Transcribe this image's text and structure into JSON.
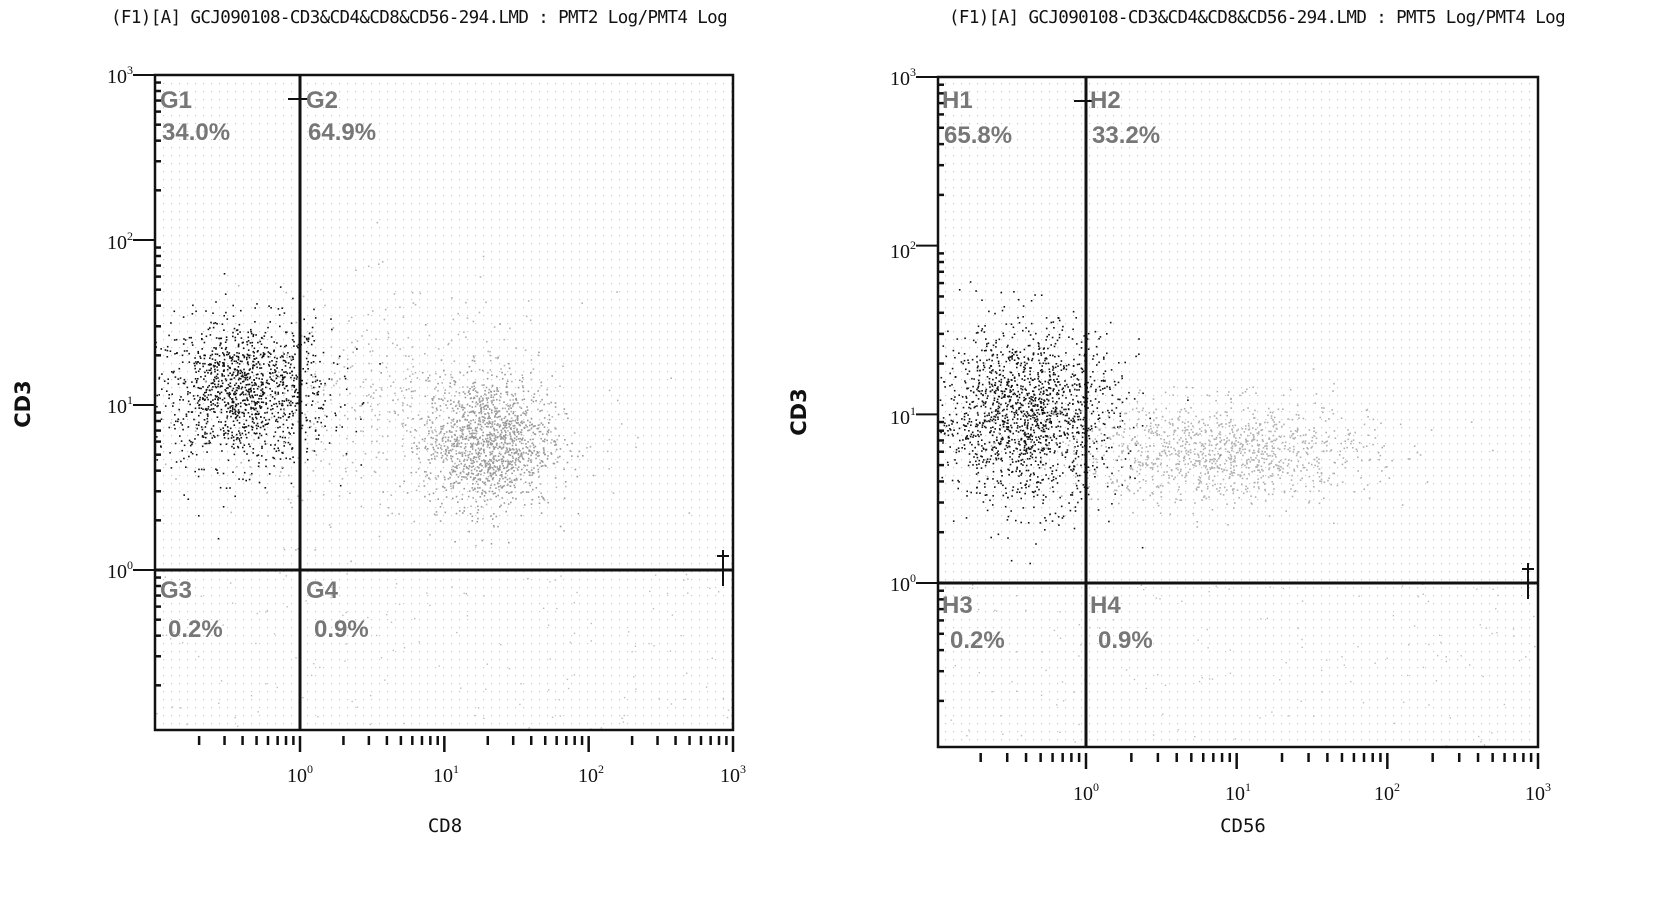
{
  "chart_data": [
    {
      "type": "scatter",
      "title": "(F1)[A] GCJ090108-CD3&CD4&CD8&CD56-294.LMD : PMT2 Log/PMT4 Log",
      "xlabel": "CD8",
      "ylabel": "CD3",
      "xscale": "log",
      "yscale": "log",
      "xlim": [
        0.1,
        1000
      ],
      "ylim": [
        0.1,
        1000
      ],
      "x_ticks": [
        "10^0",
        "10^1",
        "10^2",
        "10^3"
      ],
      "y_ticks": [
        "10^0",
        "10^1",
        "10^2",
        "10^3"
      ],
      "gate": {
        "x": 1,
        "y": 1
      },
      "quadrants": [
        {
          "name": "G1",
          "value": "34.0%"
        },
        {
          "name": "G2",
          "value": "64.9%"
        },
        {
          "name": "G3",
          "value": "0.2%"
        },
        {
          "name": "G4",
          "value": "0.9%"
        }
      ],
      "series": [
        {
          "name": "",
          "color": "#101010",
          "center": [
            0.4,
            12
          ],
          "spread_decades": [
            0.3,
            0.22
          ],
          "n": 1300
        },
        {
          "name": "",
          "color": "#9a9a9a",
          "center": [
            20,
            6
          ],
          "spread_decades": [
            0.22,
            0.2
          ],
          "n": 1300
        },
        {
          "name": "",
          "color": "#b5b5b5",
          "center": [
            6,
            9
          ],
          "spread_decades": [
            0.6,
            0.35
          ],
          "n": 500
        }
      ]
    },
    {
      "type": "scatter",
      "title": "(F1)[A] GCJ090108-CD3&CD4&CD8&CD56-294.LMD : PMT5 Log/PMT4 Log",
      "xlabel": "CD56",
      "ylabel": "CD3",
      "xscale": "log",
      "yscale": "log",
      "xlim": [
        0.1,
        1000
      ],
      "ylim": [
        0.1,
        1000
      ],
      "x_ticks": [
        "10^0",
        "10^1",
        "10^2",
        "10^3"
      ],
      "y_ticks": [
        "10^0",
        "10^1",
        "10^2",
        "10^3"
      ],
      "gate": {
        "x": 1,
        "y": 1
      },
      "quadrants": [
        {
          "name": "H1",
          "value": "65.8%"
        },
        {
          "name": "H2",
          "value": "33.2%"
        },
        {
          "name": "H3",
          "value": "0.2%"
        },
        {
          "name": "H4",
          "value": "0.9%"
        }
      ],
      "series": [
        {
          "name": "",
          "color": "#101010",
          "center": [
            0.4,
            10
          ],
          "spread_decades": [
            0.3,
            0.26
          ],
          "n": 1600
        },
        {
          "name": "",
          "color": "#b0b0b0",
          "center": [
            8,
            6
          ],
          "spread_decades": [
            0.5,
            0.15
          ],
          "n": 1100
        }
      ]
    }
  ]
}
